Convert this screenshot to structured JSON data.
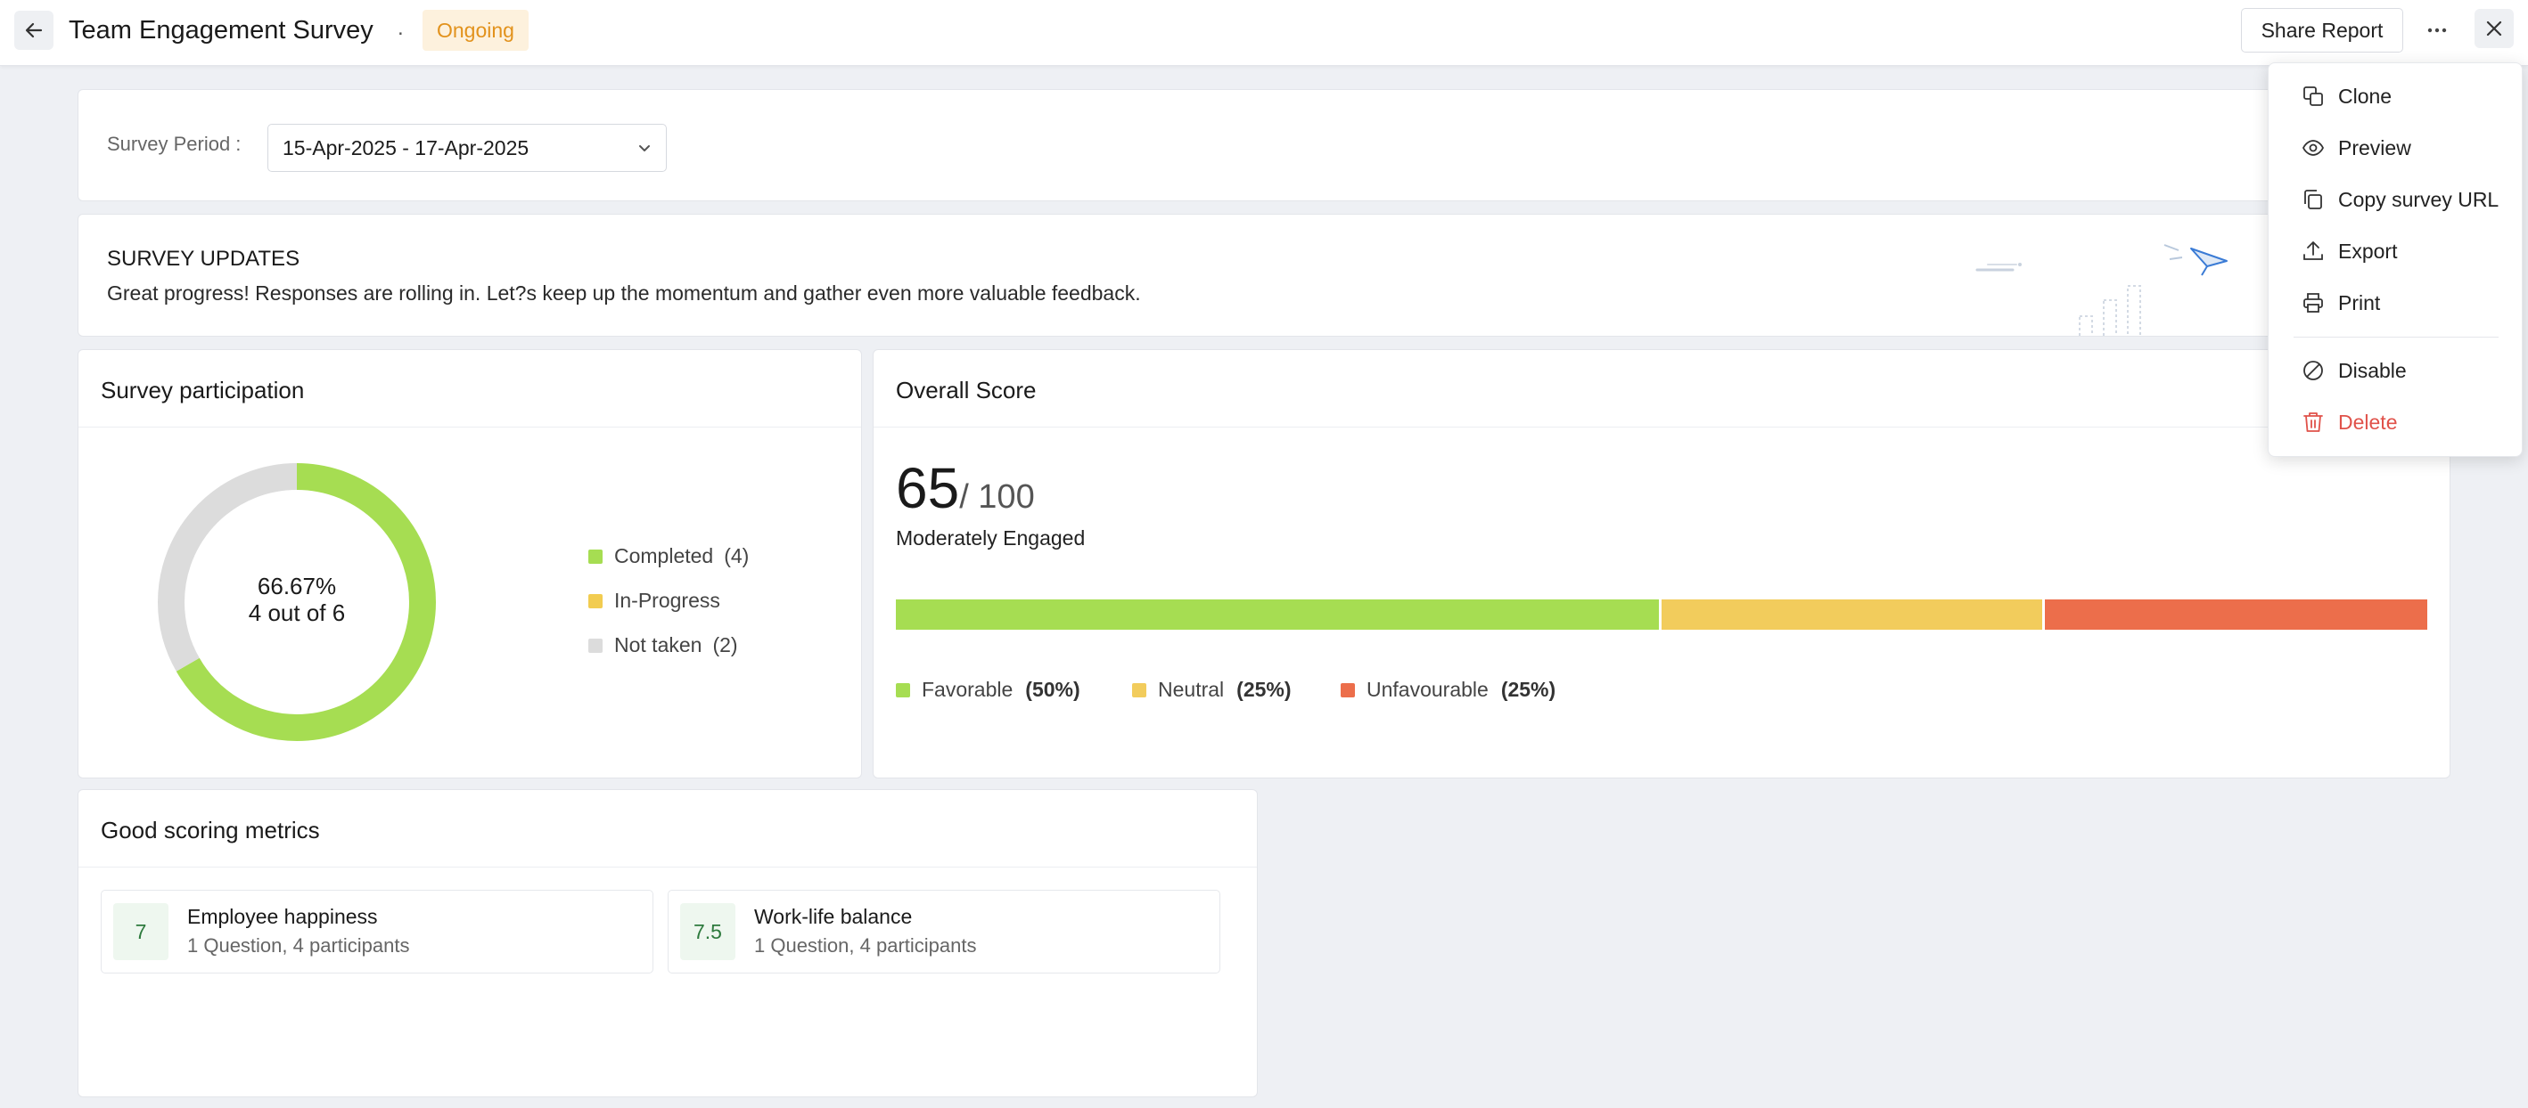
{
  "header": {
    "title": "Team Engagement Survey",
    "separator": ".",
    "status": "Ongoing",
    "share_label": "Share Report"
  },
  "filter": {
    "label": "Survey Period :",
    "value": "15-Apr-2025 - 17-Apr-2025"
  },
  "updates": {
    "title": "SURVEY UPDATES",
    "text": "Great progress! Responses are rolling in. Let?s keep up the momentum and gather even more valuable feedback."
  },
  "participation": {
    "title": "Survey participation",
    "center_percent": "66.67%",
    "center_sub": "4 out of 6",
    "legend": [
      {
        "label": "Completed",
        "count": "(4)",
        "color": "#a6dd52",
        "value": 4
      },
      {
        "label": "In-Progress",
        "count": "",
        "color": "#f2cc50",
        "value": 0
      },
      {
        "label": "Not taken",
        "count": "(2)",
        "color": "#dcdcdc",
        "value": 2
      }
    ]
  },
  "overall": {
    "title": "Overall Score",
    "score": "65",
    "max": "/ 100",
    "label": "Moderately Engaged",
    "segments": [
      {
        "label": "Favorable",
        "pct": "(50%)",
        "value": 50,
        "color": "#a6dd52"
      },
      {
        "label": "Neutral",
        "pct": "(25%)",
        "value": 25,
        "color": "#f2cc5c"
      },
      {
        "label": "Unfavourable",
        "pct": "(25%)",
        "value": 25,
        "color": "#ec6e4b"
      }
    ]
  },
  "metrics": {
    "title": "Good scoring metrics",
    "items": [
      {
        "score": "7",
        "name": "Employee happiness",
        "sub": "1 Question, 4 participants"
      },
      {
        "score": "7.5",
        "name": "Work-life balance",
        "sub": "1 Question, 4 participants"
      }
    ]
  },
  "menu": {
    "items": [
      {
        "label": "Clone",
        "icon": "clone-icon"
      },
      {
        "label": "Preview",
        "icon": "eye-icon"
      },
      {
        "label": "Copy survey URL",
        "icon": "copy-icon"
      },
      {
        "label": "Export",
        "icon": "upload-icon"
      },
      {
        "label": "Print",
        "icon": "printer-icon"
      },
      {
        "label": "Disable",
        "icon": "ban-icon"
      },
      {
        "label": "Delete",
        "icon": "trash-icon",
        "color": "#e0524a"
      }
    ]
  },
  "colors": {
    "accent_green": "#a6dd52",
    "status_orange": "#e2921c",
    "danger": "#e0524a"
  }
}
